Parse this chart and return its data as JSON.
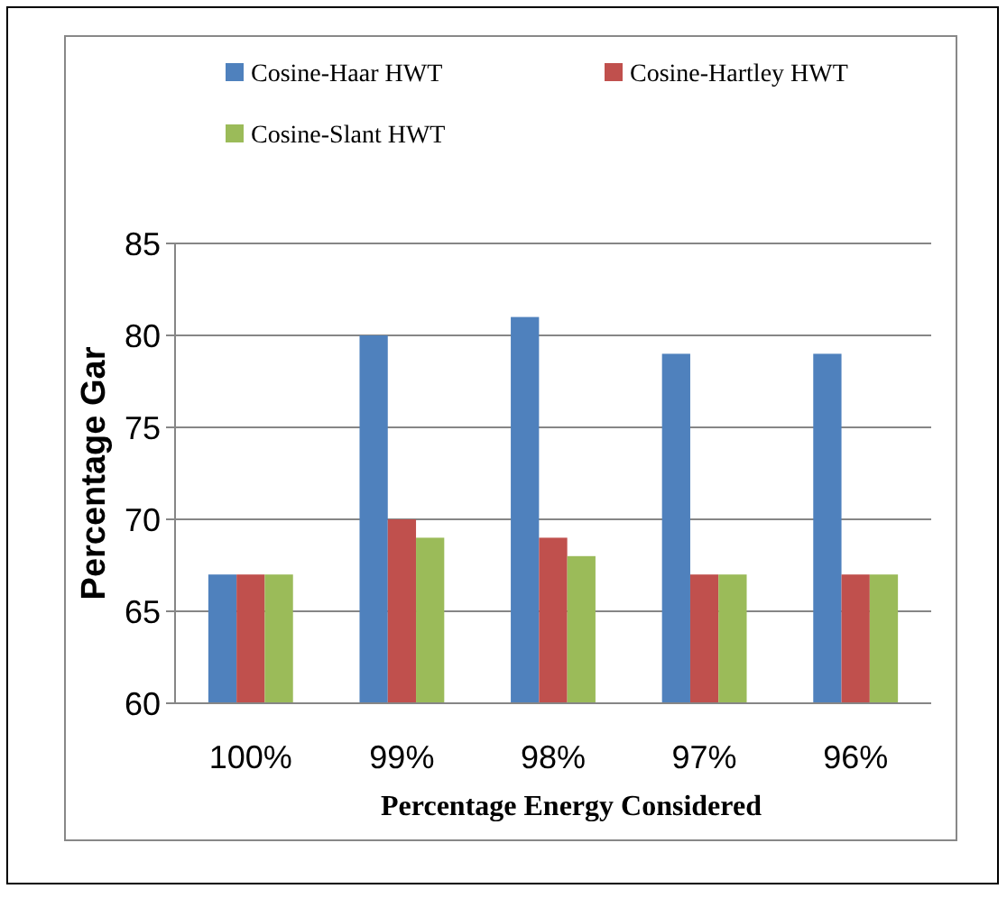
{
  "chart_data": {
    "type": "bar",
    "xlabel": "Percentage Energy Considered",
    "ylabel": "Percentage Gar",
    "categories": [
      "100%",
      "99%",
      "98%",
      "97%",
      "96%"
    ],
    "series": [
      {
        "name": "Cosine-Haar HWT",
        "color": "#4f81bd",
        "values": [
          67,
          80,
          81,
          79,
          79
        ]
      },
      {
        "name": "Cosine-Hartley HWT",
        "color": "#c0504d",
        "values": [
          67,
          70,
          69,
          67,
          67
        ]
      },
      {
        "name": "Cosine-Slant HWT",
        "color": "#9bbb59",
        "values": [
          67,
          69,
          68,
          67,
          67
        ]
      }
    ],
    "ylim": [
      60,
      85
    ],
    "yticks": [
      60,
      65,
      70,
      75,
      80,
      85
    ],
    "grid": "y",
    "legend": "top"
  }
}
